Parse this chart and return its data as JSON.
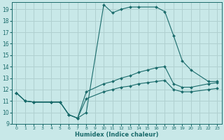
{
  "xlabel": "Humidex (Indice chaleur)",
  "bg_color": "#c8e8e8",
  "grid_color": "#b0d0d0",
  "line_color": "#1a6b6b",
  "xlim": [
    -0.5,
    23.5
  ],
  "ylim": [
    9,
    19.6
  ],
  "xticks": [
    0,
    1,
    2,
    3,
    4,
    5,
    6,
    7,
    8,
    9,
    10,
    11,
    12,
    13,
    14,
    15,
    16,
    17,
    18,
    19,
    20,
    21,
    22,
    23
  ],
  "yticks": [
    9,
    10,
    11,
    12,
    13,
    14,
    15,
    16,
    17,
    18,
    19
  ],
  "curve1_x": [
    0,
    1,
    2,
    4,
    5,
    6,
    7,
    8,
    10,
    11,
    12,
    13,
    14,
    16,
    17,
    18,
    19,
    20,
    22,
    23
  ],
  "curve1_y": [
    11.7,
    11.0,
    10.9,
    10.9,
    10.9,
    9.8,
    9.5,
    10.0,
    19.4,
    18.7,
    19.0,
    19.2,
    19.2,
    19.2,
    18.8,
    16.7,
    14.5,
    13.7,
    12.7,
    12.7
  ],
  "curve2_x": [
    0,
    1,
    2,
    4,
    5,
    6,
    7,
    8,
    10,
    11,
    12,
    13,
    14,
    15,
    16,
    17,
    18,
    19,
    20,
    22,
    23
  ],
  "curve2_y": [
    11.7,
    11.0,
    10.9,
    10.9,
    10.9,
    9.8,
    9.5,
    11.8,
    12.5,
    12.7,
    13.0,
    13.2,
    13.5,
    13.7,
    13.9,
    14.0,
    12.5,
    12.2,
    12.2,
    12.5,
    12.6
  ],
  "curve3_x": [
    0,
    1,
    2,
    4,
    5,
    6,
    7,
    8,
    10,
    11,
    12,
    13,
    14,
    15,
    16,
    17,
    18,
    19,
    20,
    22,
    23
  ],
  "curve3_y": [
    11.7,
    11.0,
    10.9,
    10.9,
    10.9,
    9.8,
    9.5,
    11.2,
    11.8,
    12.0,
    12.2,
    12.3,
    12.5,
    12.6,
    12.7,
    12.8,
    12.0,
    11.8,
    11.8,
    12.0,
    12.1
  ]
}
